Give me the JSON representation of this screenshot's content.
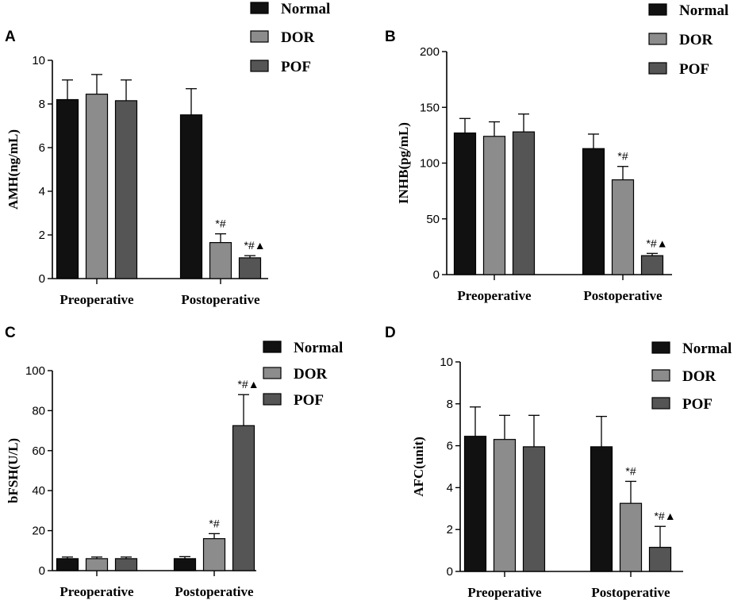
{
  "chart_data": [
    {
      "panel": "A",
      "type": "bar",
      "ylabel": "AMH(ng/mL)",
      "ylim": [
        0,
        10
      ],
      "yticks": [
        0,
        2,
        4,
        6,
        8,
        10
      ],
      "categories": [
        "Preoperative",
        "Postoperative"
      ],
      "legend": [
        "Normal",
        "DOR",
        "POF"
      ],
      "series": [
        {
          "name": "Normal",
          "color": "#111111",
          "values": [
            8.2,
            7.5
          ],
          "errors": [
            0.9,
            1.2
          ]
        },
        {
          "name": "DOR",
          "color": "#8c8c8c",
          "values": [
            8.45,
            1.65
          ],
          "errors": [
            0.9,
            0.4
          ]
        },
        {
          "name": "POF",
          "color": "#555555",
          "values": [
            8.15,
            0.95
          ],
          "errors": [
            0.95,
            0.1
          ]
        }
      ],
      "annotations": [
        {
          "category": 1,
          "series": 1,
          "text": "*#"
        },
        {
          "category": 1,
          "series": 2,
          "text": "*#▲"
        }
      ]
    },
    {
      "panel": "B",
      "type": "bar",
      "ylabel": "INHB(pg/mL)",
      "ylim": [
        0,
        200
      ],
      "yticks": [
        0,
        50,
        100,
        150,
        200
      ],
      "categories": [
        "Preoperative",
        "Postoperative"
      ],
      "legend": [
        "Normal",
        "DOR",
        "POF"
      ],
      "series": [
        {
          "name": "Normal",
          "color": "#111111",
          "values": [
            127,
            113
          ],
          "errors": [
            13,
            13
          ]
        },
        {
          "name": "DOR",
          "color": "#8c8c8c",
          "values": [
            124,
            85
          ],
          "errors": [
            13,
            12
          ]
        },
        {
          "name": "POF",
          "color": "#555555",
          "values": [
            128,
            17
          ],
          "errors": [
            16,
            2
          ]
        }
      ],
      "annotations": [
        {
          "category": 1,
          "series": 1,
          "text": "*#"
        },
        {
          "category": 1,
          "series": 2,
          "text": "*#▲"
        }
      ]
    },
    {
      "panel": "C",
      "type": "bar",
      "ylabel": "bFSH(U/L)",
      "ylim": [
        0,
        100
      ],
      "yticks": [
        0,
        20,
        40,
        60,
        80,
        100
      ],
      "categories": [
        "Preoperative",
        "Postoperative"
      ],
      "legend": [
        "Normal",
        "DOR",
        "POF"
      ],
      "series": [
        {
          "name": "Normal",
          "color": "#111111",
          "values": [
            6,
            6
          ],
          "errors": [
            0.8,
            1
          ]
        },
        {
          "name": "DOR",
          "color": "#8c8c8c",
          "values": [
            6,
            16
          ],
          "errors": [
            0.8,
            2.5
          ]
        },
        {
          "name": "POF",
          "color": "#555555",
          "values": [
            6,
            72.5
          ],
          "errors": [
            0.8,
            15.5
          ]
        }
      ],
      "annotations": [
        {
          "category": 1,
          "series": 1,
          "text": "*#"
        },
        {
          "category": 1,
          "series": 2,
          "text": "*#▲"
        }
      ]
    },
    {
      "panel": "D",
      "type": "bar",
      "ylabel": "AFC(unit)",
      "ylim": [
        0,
        10
      ],
      "yticks": [
        0,
        2,
        4,
        6,
        8,
        10
      ],
      "categories": [
        "Preoperative",
        "Postoperative"
      ],
      "legend": [
        "Normal",
        "DOR",
        "POF"
      ],
      "series": [
        {
          "name": "Normal",
          "color": "#111111",
          "values": [
            6.45,
            5.95
          ],
          "errors": [
            1.4,
            1.45
          ]
        },
        {
          "name": "DOR",
          "color": "#8c8c8c",
          "values": [
            6.3,
            3.25
          ],
          "errors": [
            1.15,
            1.05
          ]
        },
        {
          "name": "POF",
          "color": "#555555",
          "values": [
            5.95,
            1.15
          ],
          "errors": [
            1.5,
            1.0
          ]
        }
      ],
      "annotations": [
        {
          "category": 1,
          "series": 1,
          "text": "*#"
        },
        {
          "category": 1,
          "series": 2,
          "text": "*#▲"
        }
      ]
    }
  ]
}
